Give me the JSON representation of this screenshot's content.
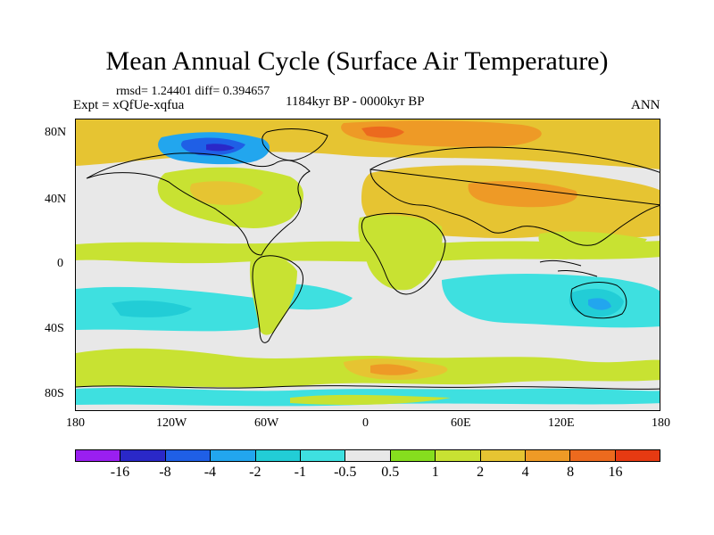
{
  "title": "Mean Annual Cycle (Surface Air Temperature)",
  "stats": "rmsd= 1.24401 diff= 0.394657",
  "experiment": "Expt = xQfUe-xqfua",
  "period": "1184kyr BP - 0000kyr BP",
  "season": "ANN",
  "y_axis_labels": [
    "80N",
    "40N",
    "0",
    "40S",
    "80S"
  ],
  "x_axis_labels": [
    "180",
    "120W",
    "60W",
    "0",
    "60E",
    "120E",
    "180"
  ],
  "colorbar": {
    "colors": [
      "#9a1ff0",
      "#2a28c8",
      "#1f5fe6",
      "#22a6ee",
      "#22cdd6",
      "#3ee0e0",
      "#e8e8e8",
      "#86de1e",
      "#c8e232",
      "#e6c432",
      "#ee9a26",
      "#ec6a1e",
      "#e63a12"
    ],
    "labels": [
      "-16",
      "-8",
      "-4",
      "-2",
      "-1",
      "-0.5",
      "0.5",
      "1",
      "2",
      "4",
      "8",
      "16"
    ]
  },
  "palette": {
    "neutral": "#e8e8e8",
    "cool1": "#3ee0e0",
    "cool2": "#22cdd6",
    "cool3": "#22a6ee",
    "cool4": "#1f5fe6",
    "cool5": "#2a28c8",
    "warm1": "#86de1e",
    "warm2": "#c8e232",
    "warm3": "#e6c432",
    "warm4": "#ee9a26",
    "warm5": "#ec6a1e"
  }
}
